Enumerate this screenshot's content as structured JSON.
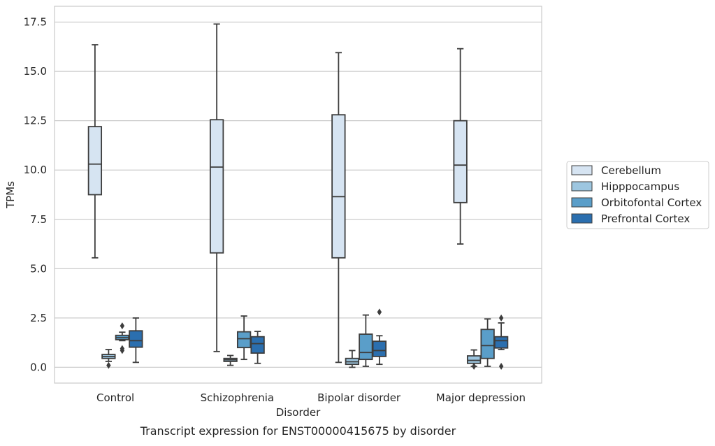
{
  "chart_data": {
    "type": "box",
    "title": "Transcript expression for ENST00000415675 by disorder",
    "xlabel": "Disorder",
    "ylabel": "TPMs",
    "ylim": [
      -0.8,
      18.3
    ],
    "yticks": [
      0.0,
      2.5,
      5.0,
      7.5,
      10.0,
      12.5,
      15.0,
      17.5
    ],
    "ytick_labels": [
      "0.0",
      "2.5",
      "5.0",
      "7.5",
      "10.0",
      "12.5",
      "15.0",
      "17.5"
    ],
    "grid": "horizontal",
    "legend_position": "right",
    "categories": [
      "Control",
      "Schizophrenia",
      "Bipolar disorder",
      "Major depression"
    ],
    "series": [
      {
        "name": "Cerebellum",
        "color": "#d6e4f2",
        "boxes": [
          {
            "whislo": 5.55,
            "q1": 8.75,
            "med": 10.3,
            "q3": 12.2,
            "whishi": 16.35,
            "fliers": []
          },
          {
            "whislo": 0.8,
            "q1": 5.8,
            "med": 10.15,
            "q3": 12.55,
            "whishi": 17.4,
            "fliers": []
          },
          {
            "whislo": 0.25,
            "q1": 5.55,
            "med": 8.65,
            "q3": 12.8,
            "whishi": 15.95,
            "fliers": []
          },
          {
            "whislo": 6.25,
            "q1": 8.35,
            "med": 10.25,
            "q3": 12.5,
            "whishi": 16.15,
            "fliers": []
          }
        ]
      },
      {
        "name": "Hipppocampus",
        "color": "#9dc6e0",
        "boxes": [
          {
            "whislo": 0.3,
            "q1": 0.45,
            "med": 0.55,
            "q3": 0.65,
            "whishi": 0.9,
            "fliers": [
              0.1
            ]
          },
          {
            "whislo": 0.1,
            "q1": 0.3,
            "med": 0.38,
            "q3": 0.45,
            "whishi": 0.6,
            "fliers": []
          },
          {
            "whislo": 0.0,
            "q1": 0.15,
            "med": 0.28,
            "q3": 0.45,
            "whishi": 0.85,
            "fliers": []
          },
          {
            "whislo": 0.05,
            "q1": 0.2,
            "med": 0.35,
            "q3": 0.58,
            "whishi": 0.88,
            "fliers": [
              0.05
            ]
          }
        ]
      },
      {
        "name": "Orbitofontal Cortex",
        "color": "#5a9ec9",
        "boxes": [
          {
            "whislo": 1.35,
            "q1": 1.4,
            "med": 1.5,
            "q3": 1.62,
            "whishi": 1.78,
            "fliers": [
              0.85,
              0.95,
              2.1
            ]
          },
          {
            "whislo": 0.4,
            "q1": 1.0,
            "med": 1.45,
            "q3": 1.8,
            "whishi": 2.6,
            "fliers": []
          },
          {
            "whislo": 0.05,
            "q1": 0.4,
            "med": 0.75,
            "q3": 1.68,
            "whishi": 2.65,
            "fliers": []
          },
          {
            "whislo": 0.05,
            "q1": 0.45,
            "med": 1.1,
            "q3": 1.92,
            "whishi": 2.45,
            "fliers": []
          }
        ]
      },
      {
        "name": "Prefrontal Cortex",
        "color": "#2b6faf",
        "boxes": [
          {
            "whislo": 0.25,
            "q1": 1.02,
            "med": 1.35,
            "q3": 1.85,
            "whishi": 2.5,
            "fliers": []
          },
          {
            "whislo": 0.2,
            "q1": 0.72,
            "med": 1.2,
            "q3": 1.55,
            "whishi": 1.82,
            "fliers": []
          },
          {
            "whislo": 0.15,
            "q1": 0.55,
            "med": 0.85,
            "q3": 1.32,
            "whishi": 1.6,
            "fliers": [
              2.8
            ]
          },
          {
            "whislo": 0.9,
            "q1": 0.98,
            "med": 1.35,
            "q3": 1.55,
            "whishi": 2.25,
            "fliers": [
              0.05,
              2.5
            ]
          }
        ]
      }
    ]
  }
}
